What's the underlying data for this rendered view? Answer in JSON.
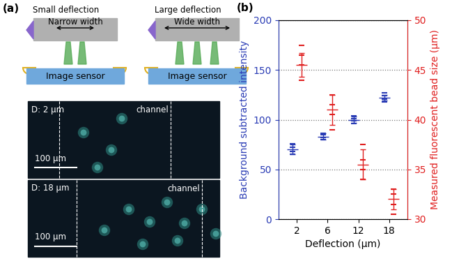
{
  "panel_a": {
    "label": "(a)",
    "schematic": [
      {
        "title": "Small deflection",
        "width": "Narrow width",
        "sensor": "Image sensor"
      },
      {
        "title": "Large deflection",
        "width": "Wide width",
        "sensor": "Image sensor"
      }
    ],
    "images": [
      {
        "deflection": "D: 2 μm",
        "channel": "channel",
        "scale_bar": "100 μm"
      },
      {
        "deflection": "D: 18 μm",
        "channel": "channel",
        "scale_bar": "100 μm"
      }
    ]
  },
  "chart_data": {
    "label": "(b)",
    "type": "scatter",
    "x_label": "Deflection (μm)",
    "y_label": "Background subtracted intensity",
    "y2_label": "Measured fluorescent bead size (μm)",
    "categories": [
      "2",
      "6",
      "12",
      "18"
    ],
    "ylim": [
      0,
      200
    ],
    "yticks": [
      0,
      50,
      100,
      150,
      200
    ],
    "y2lim": [
      30,
      50
    ],
    "y2ticks": [
      30,
      35,
      40,
      45,
      50
    ],
    "grid": true,
    "series": [
      {
        "color": "#2a3cb5",
        "marker": "_",
        "axis": "y",
        "values": [
          70,
          83,
          100,
          122
        ],
        "error": [
          5,
          3,
          3,
          3
        ],
        "points": [
          [
            65,
            68,
            72,
            76
          ],
          [
            80,
            82,
            85,
            86
          ],
          [
            96,
            99,
            101,
            104
          ],
          [
            118,
            121,
            124,
            127
          ]
        ]
      },
      {
        "color": "#e02020",
        "marker": "_",
        "axis": "y2",
        "values": [
          45.5,
          41,
          35.5,
          32
        ],
        "error": [
          1.2,
          1.5,
          1.5,
          1
        ],
        "points": [
          [
            44,
            45.5,
            46.5,
            47.5
          ],
          [
            39,
            40.5,
            41.5,
            42.5
          ],
          [
            34,
            35,
            36,
            37.5
          ],
          [
            30.5,
            31.5,
            32.5,
            33
          ]
        ]
      }
    ]
  }
}
